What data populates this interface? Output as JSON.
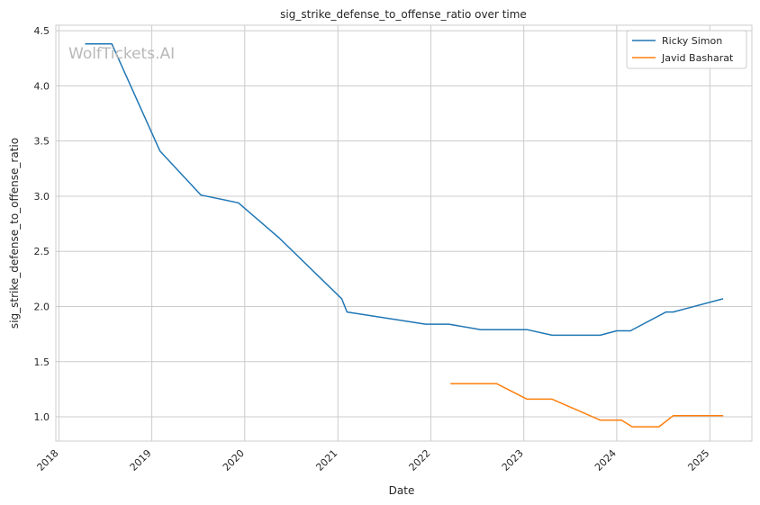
{
  "chart_data": {
    "type": "line",
    "title": "sig_strike_defense_to_offense_ratio over time",
    "xlabel": "Date",
    "ylabel": "sig_strike_defense_to_offense_ratio",
    "watermark": "WolfTickets.AI",
    "x_type": "date",
    "xlim": [
      "2017-12-20",
      "2025-06-15"
    ],
    "ylim": [
      0.78,
      4.55
    ],
    "x_ticks": [
      "2018",
      "2019",
      "2020",
      "2021",
      "2022",
      "2023",
      "2024",
      "2025"
    ],
    "y_ticks": [
      "1.0",
      "1.5",
      "2.0",
      "2.5",
      "3.0",
      "3.5",
      "4.0",
      "4.5"
    ],
    "grid": true,
    "legend": {
      "placement": "top-right",
      "entries": [
        "Ricky Simon",
        "Javid Basharat"
      ]
    },
    "series": [
      {
        "name": "Ricky Simon",
        "color": "#1f77b4",
        "points": [
          [
            "2018-04-14",
            4.38
          ],
          [
            "2018-07-28",
            4.38
          ],
          [
            "2019-02-02",
            3.41
          ],
          [
            "2019-07-13",
            3.01
          ],
          [
            "2019-12-07",
            2.94
          ],
          [
            "2020-05-16",
            2.62
          ],
          [
            "2021-01-16",
            2.07
          ],
          [
            "2021-02-06",
            1.95
          ],
          [
            "2021-12-11",
            1.84
          ],
          [
            "2022-03-12",
            1.84
          ],
          [
            "2022-07-16",
            1.79
          ],
          [
            "2023-01-14",
            1.79
          ],
          [
            "2023-04-22",
            1.74
          ],
          [
            "2023-10-28",
            1.74
          ],
          [
            "2024-01-01",
            1.78
          ],
          [
            "2024-02-24",
            1.78
          ],
          [
            "2024-07-13",
            1.95
          ],
          [
            "2024-08-10",
            1.95
          ],
          [
            "2025-02-22",
            2.07
          ]
        ]
      },
      {
        "name": "Javid Basharat",
        "color": "#ff7f0e",
        "points": [
          [
            "2022-03-19",
            1.3
          ],
          [
            "2022-09-17",
            1.3
          ],
          [
            "2023-01-14",
            1.16
          ],
          [
            "2023-04-22",
            1.16
          ],
          [
            "2023-10-28",
            0.97
          ],
          [
            "2024-01-20",
            0.97
          ],
          [
            "2024-03-02",
            0.91
          ],
          [
            "2024-06-15",
            0.91
          ],
          [
            "2024-08-10",
            1.01
          ],
          [
            "2025-02-22",
            1.01
          ]
        ]
      }
    ]
  }
}
